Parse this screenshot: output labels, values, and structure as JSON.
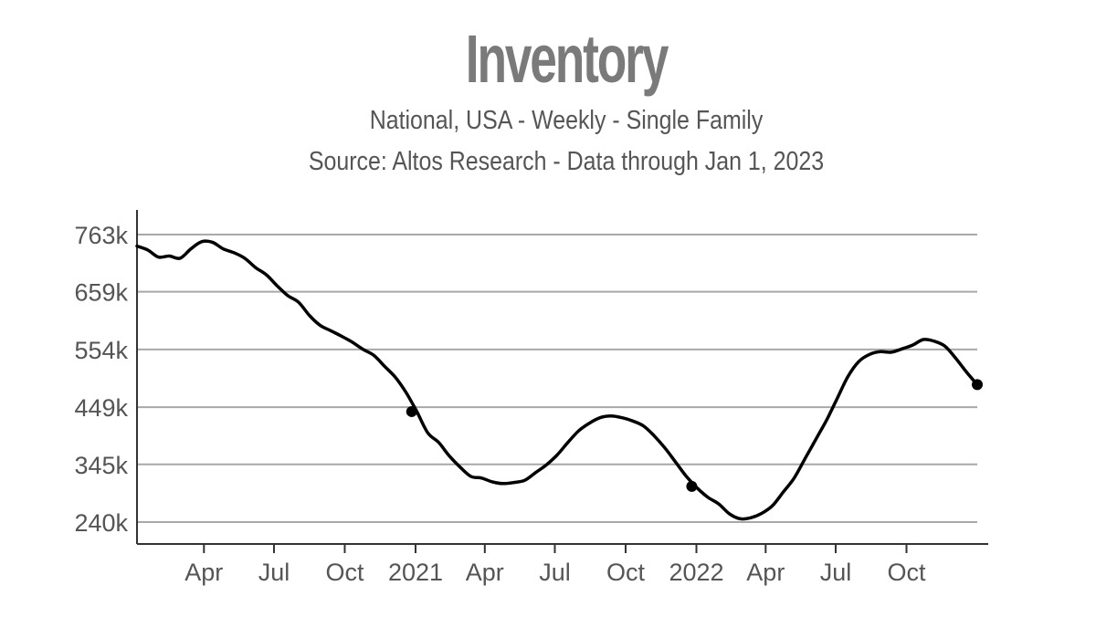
{
  "chart_data": {
    "type": "line",
    "title": "Inventory",
    "subtitle": "National, USA - Weekly - Single Family",
    "source": "Source: Altos Research - Data through Jan 1, 2023",
    "xlabel": "",
    "ylabel": "",
    "x_range": [
      "2020-01-05",
      "2023-01-01"
    ],
    "ylim": [
      200000,
      810000
    ],
    "y_ticks": [
      240000,
      345000,
      449000,
      554000,
      659000,
      763000
    ],
    "y_tick_labels": [
      "240k",
      "345k",
      "449k",
      "554k",
      "659k",
      "763k"
    ],
    "x_ticks": [
      "2020-04-01",
      "2020-07-01",
      "2020-10-01",
      "2021-01-01",
      "2021-04-01",
      "2021-07-01",
      "2021-10-01",
      "2022-01-01",
      "2022-04-01",
      "2022-07-01",
      "2022-10-01"
    ],
    "x_tick_labels": [
      "Apr",
      "Jul",
      "Oct",
      "2021",
      "Apr",
      "Jul",
      "Oct",
      "2022",
      "Apr",
      "Jul",
      "Oct"
    ],
    "grid": "horizontal",
    "line_color": "#000000",
    "series": [
      {
        "points": [
          [
            "2020-01-05",
            742000
          ],
          [
            "2020-01-19",
            735000
          ],
          [
            "2020-02-02",
            722000
          ],
          [
            "2020-02-16",
            724000
          ],
          [
            "2020-03-01",
            720000
          ],
          [
            "2020-03-15",
            737000
          ],
          [
            "2020-03-29",
            750000
          ],
          [
            "2020-04-12",
            749000
          ],
          [
            "2020-04-26",
            737000
          ],
          [
            "2020-05-10",
            730000
          ],
          [
            "2020-05-24",
            720000
          ],
          [
            "2020-06-07",
            703000
          ],
          [
            "2020-06-21",
            690000
          ],
          [
            "2020-07-05",
            670000
          ],
          [
            "2020-07-19",
            652000
          ],
          [
            "2020-08-02",
            640000
          ],
          [
            "2020-08-16",
            616000
          ],
          [
            "2020-08-30",
            598000
          ],
          [
            "2020-09-13",
            588000
          ],
          [
            "2020-09-27",
            578000
          ],
          [
            "2020-10-11",
            567000
          ],
          [
            "2020-10-25",
            554000
          ],
          [
            "2020-11-08",
            543000
          ],
          [
            "2020-11-22",
            523000
          ],
          [
            "2020-12-06",
            503000
          ],
          [
            "2020-12-20",
            475000
          ],
          [
            "2021-01-03",
            440000
          ],
          [
            "2021-01-17",
            402000
          ],
          [
            "2021-01-31",
            385000
          ],
          [
            "2021-02-14",
            360000
          ],
          [
            "2021-02-28",
            340000
          ],
          [
            "2021-03-14",
            323000
          ],
          [
            "2021-03-28",
            320000
          ],
          [
            "2021-04-11",
            313000
          ],
          [
            "2021-04-25",
            310000
          ],
          [
            "2021-05-09",
            312000
          ],
          [
            "2021-05-23",
            316000
          ],
          [
            "2021-06-06",
            330000
          ],
          [
            "2021-06-20",
            344000
          ],
          [
            "2021-07-04",
            362000
          ],
          [
            "2021-07-18",
            385000
          ],
          [
            "2021-08-01",
            406000
          ],
          [
            "2021-08-15",
            420000
          ],
          [
            "2021-08-29",
            430000
          ],
          [
            "2021-09-12",
            433000
          ],
          [
            "2021-09-26",
            430000
          ],
          [
            "2021-10-10",
            424000
          ],
          [
            "2021-10-24",
            415000
          ],
          [
            "2021-11-07",
            397000
          ],
          [
            "2021-11-21",
            375000
          ],
          [
            "2021-12-05",
            349000
          ],
          [
            "2021-12-19",
            323000
          ],
          [
            "2022-01-02",
            302000
          ],
          [
            "2022-01-16",
            285000
          ],
          [
            "2022-01-30",
            273000
          ],
          [
            "2022-02-13",
            255000
          ],
          [
            "2022-02-27",
            246000
          ],
          [
            "2022-03-13",
            248000
          ],
          [
            "2022-03-27",
            256000
          ],
          [
            "2022-04-10",
            270000
          ],
          [
            "2022-04-24",
            295000
          ],
          [
            "2022-05-08",
            320000
          ],
          [
            "2022-05-22",
            355000
          ],
          [
            "2022-06-05",
            390000
          ],
          [
            "2022-06-19",
            425000
          ],
          [
            "2022-07-03",
            465000
          ],
          [
            "2022-07-17",
            505000
          ],
          [
            "2022-07-31",
            532000
          ],
          [
            "2022-08-14",
            545000
          ],
          [
            "2022-08-28",
            550000
          ],
          [
            "2022-09-11",
            549000
          ],
          [
            "2022-09-25",
            555000
          ],
          [
            "2022-10-09",
            562000
          ],
          [
            "2022-10-23",
            572000
          ],
          [
            "2022-11-06",
            569000
          ],
          [
            "2022-11-20",
            560000
          ],
          [
            "2022-12-04",
            538000
          ],
          [
            "2022-12-18",
            513000
          ],
          [
            "2023-01-01",
            490000
          ]
        ]
      }
    ],
    "highlighted_points": [
      [
        "2020-12-27",
        441000
      ],
      [
        "2021-12-26",
        305000
      ],
      [
        "2023-01-01",
        490000
      ]
    ]
  }
}
